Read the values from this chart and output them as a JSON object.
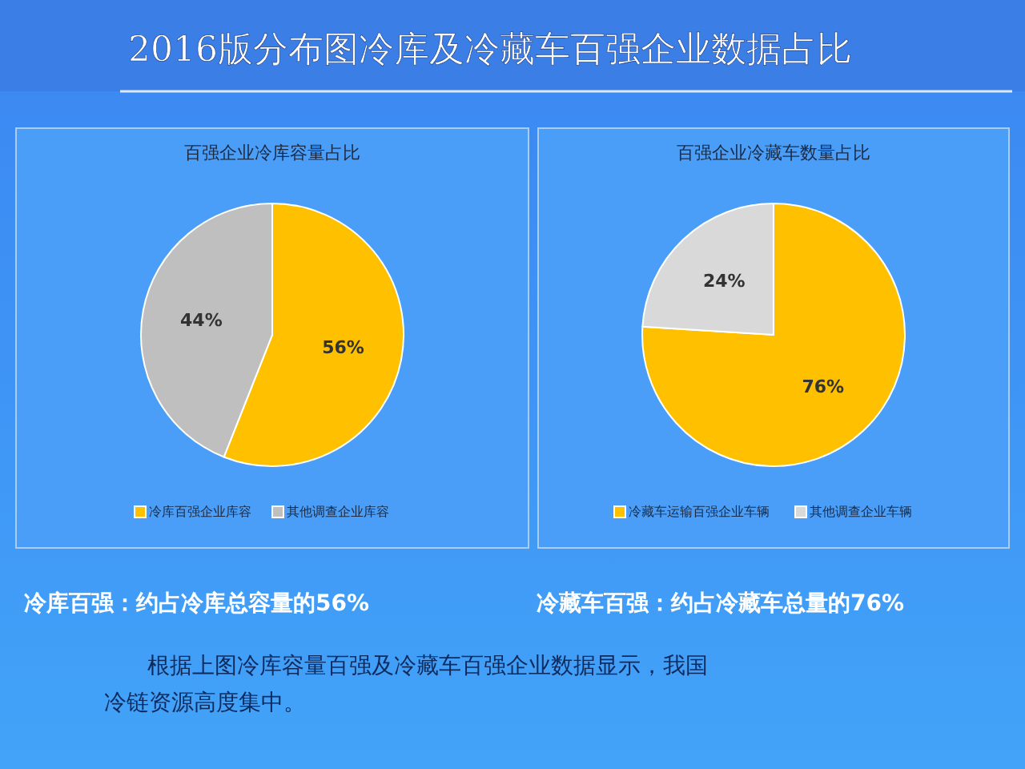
{
  "chart_data": [
    {
      "type": "other",
      "title": "2016版分布图冷库及冷藏车百强企业数据占比",
      "annotations": [
        "冷库百强：约占冷库总容量的56%",
        "冷藏车百强：约占冷藏车总量的76%",
        "根据上图冷库容量百强及冷藏车百强企业数据显示，我国冷链资源高度集中。"
      ]
    },
    {
      "type": "pie",
      "title": "百强企业冷库容量占比",
      "categories": [
        "冷库百强企业库容",
        "其他调查企业库容"
      ],
      "values": [
        56,
        44
      ],
      "value_labels": [
        "56%",
        "44%"
      ],
      "colors": [
        "#ffc000",
        "#bfbfbf"
      ],
      "legend": "bottom"
    },
    {
      "type": "pie",
      "title": "百强企业冷藏车数量占比",
      "categories": [
        "冷藏车运输百强企业车辆",
        "其他调查企业车辆"
      ],
      "values": [
        76,
        24
      ],
      "value_labels": [
        "76%",
        "24%"
      ],
      "colors": [
        "#ffc000",
        "#d9d9d9"
      ],
      "legend": "bottom"
    }
  ]
}
